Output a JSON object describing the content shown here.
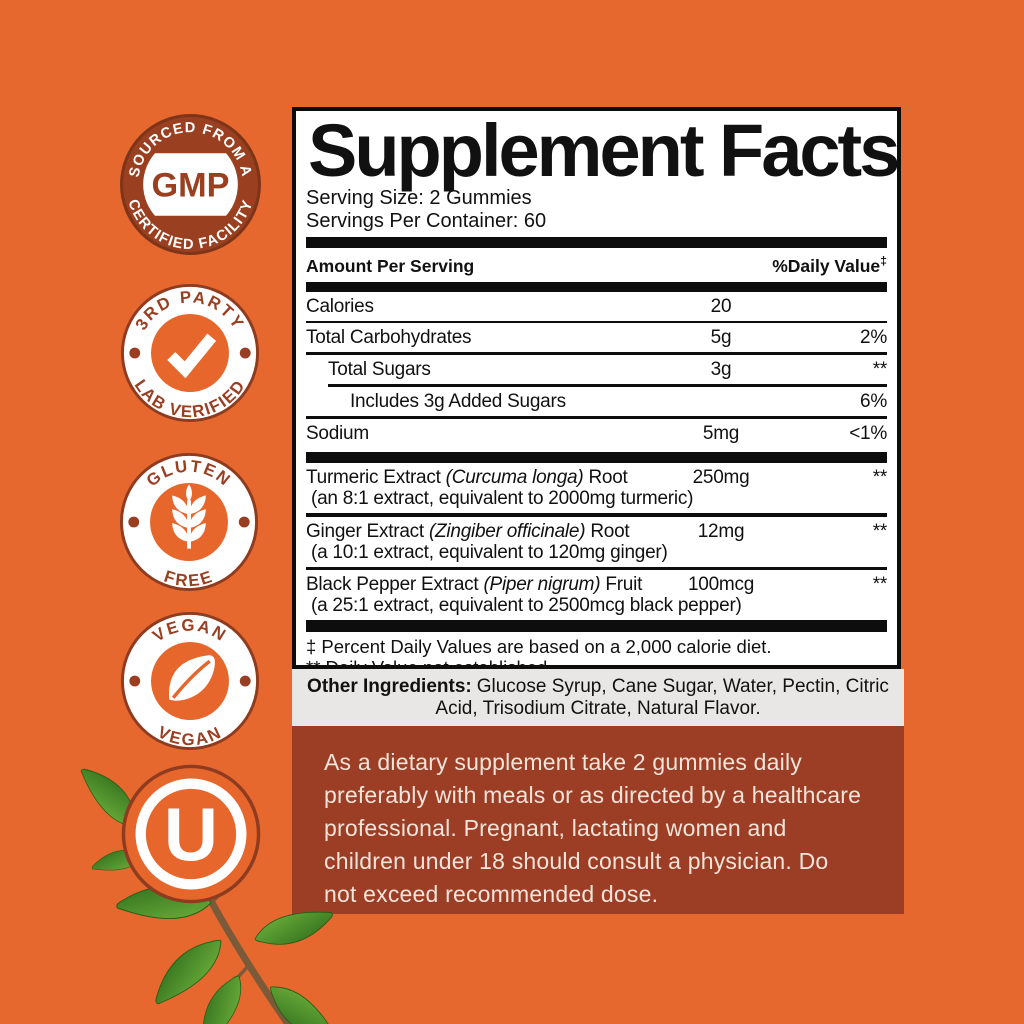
{
  "colors": {
    "background_orange": "#E6682E",
    "badge_brown": "#9A4021",
    "badge_ring": "#8E3B20",
    "badge_text_brown": "#9A3E22",
    "panel_black": "#0d0d0d",
    "gray_strip": "#E8E7E5",
    "directions_box": "#9C3E25",
    "directions_text": "#F2E4DA",
    "leaf_green_light": "#6FB13C",
    "leaf_green_dark": "#2E6B1B"
  },
  "badges": [
    {
      "name": "gmp-certified",
      "top": "SOURCED FROM A",
      "center": "GMP",
      "bottom": "CERTIFIED FACILITY"
    },
    {
      "name": "third-party-lab-verified",
      "top": "3RD PARTY",
      "bottom": "LAB VERIFIED",
      "icon": "checkmark-icon"
    },
    {
      "name": "gluten-free",
      "top": "GLUTEN",
      "bottom": "FREE",
      "icon": "wheat-icon"
    },
    {
      "name": "vegan",
      "top": "VEGAN",
      "bottom": "VEGAN",
      "icon": "leaf-icon"
    },
    {
      "name": "kosher",
      "center": "U",
      "icon": "kosher-u-icon"
    }
  ],
  "panel": {
    "title": "Supplement Facts",
    "serving_size": "Serving Size: 2 Gummies",
    "servings_per_container": "Servings Per Container: 60",
    "columns": {
      "amount": "Amount Per Serving",
      "daily_value": "%Daily Value",
      "daily_value_sup": "‡"
    },
    "rows": [
      {
        "name": [
          {
            "t": "Calories"
          }
        ],
        "amount": "20",
        "dv": "",
        "indent": 0,
        "divider_after": "thin"
      },
      {
        "name": [
          {
            "t": "Total Carbohydrates"
          }
        ],
        "amount": "5g",
        "dv": "2%",
        "indent": 0,
        "divider_after": "med"
      },
      {
        "name": [
          {
            "t": "Total Sugars"
          }
        ],
        "amount": "3g",
        "dv": "**",
        "indent": 1,
        "divider_after": "partial"
      },
      {
        "name": [
          {
            "t": "Includes 3g Added Sugars"
          }
        ],
        "amount": "",
        "dv": "6%",
        "indent": 2,
        "divider_after": "med"
      },
      {
        "name": [
          {
            "t": "Sodium"
          }
        ],
        "amount": "5mg",
        "dv": "<1%",
        "indent": 0,
        "divider_after": "thick"
      },
      {
        "name": [
          {
            "t": "Turmeric Extract "
          },
          {
            "t": "(Curcuma longa)",
            "i": true
          },
          {
            "t": " Root"
          }
        ],
        "sub": "(an 8:1 extract, equivalent to 2000mg turmeric)",
        "amount": "250mg",
        "dv": "**",
        "indent": 0,
        "divider_after": "med"
      },
      {
        "name": [
          {
            "t": "Ginger Extract "
          },
          {
            "t": "(Zingiber officinale)",
            "i": true
          },
          {
            "t": " Root"
          }
        ],
        "sub": "(a 10:1 extract, equivalent to 120mg ginger)",
        "amount": "12mg",
        "dv": "**",
        "indent": 0,
        "divider_after": "med"
      },
      {
        "name": [
          {
            "t": "Black Pepper Extract "
          },
          {
            "t": "(Piper nigrum)",
            "i": true
          },
          {
            "t": " Fruit"
          }
        ],
        "sub": "(a 25:1 extract, equivalent to 2500mcg black pepper)",
        "amount": "100mcg",
        "dv": "**",
        "indent": 0,
        "divider_after": "thick2"
      }
    ],
    "footnotes": [
      "‡ Percent Daily Values are based on a 2,000 calorie diet.",
      "** Daily Value not established."
    ]
  },
  "other_ingredients": {
    "label": "Other Ingredients:",
    "lines": [
      "Glucose Syrup, Cane Sugar, Water, Pectin, Citric",
      "Acid, Trisodium Citrate, Natural Flavor."
    ]
  },
  "directions": {
    "lines": [
      "As a dietary supplement take 2 gummies daily",
      "preferably with meals or as directed by a healthcare",
      "professional. Pregnant, lactating women and",
      "children under 18 should consult a physician. Do",
      "not exceed recommended dose."
    ]
  }
}
